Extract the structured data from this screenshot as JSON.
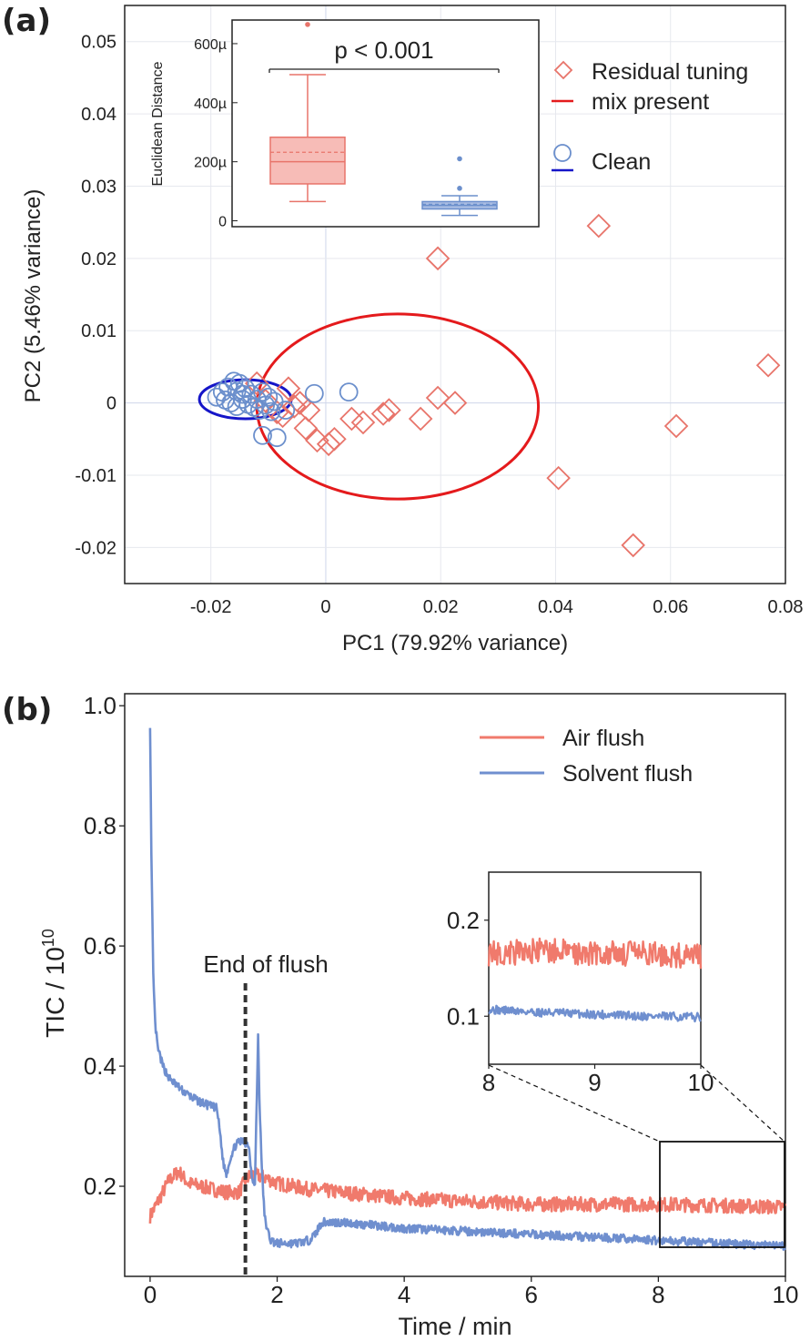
{
  "panel_a": {
    "label": "(a)",
    "xlabel": "PC1  (79.92% variance)",
    "ylabel": "PC2  (5.46% variance)",
    "legend": {
      "residual_line1": "Residual tuning",
      "residual_line2": "mix present",
      "clean": "Clean"
    },
    "inset": {
      "ylabel": "Euclidean Distance",
      "annotation": "p < 0.001"
    }
  },
  "panel_b": {
    "label": "(b)",
    "xlabel": "Time / min",
    "ylabel_prefix": "TIC / 10",
    "ylabel_exp": "10",
    "legend": {
      "air": "Air flush",
      "solvent": "Solvent flush"
    },
    "annotation": "End of flush"
  },
  "colors": {
    "residual": "#e8746a",
    "clean": "#6b8fcc",
    "ellipse_residual": "#e41a1c",
    "ellipse_clean": "#1515c8",
    "air": "#f07a6c",
    "solvent": "#6f8fcf"
  },
  "chart_data": [
    {
      "type": "scatter",
      "xlim": [
        -0.035,
        0.08
      ],
      "ylim": [
        -0.025,
        0.055
      ],
      "x_ticks": [
        "-0.02",
        "0",
        "0.02",
        "0.04",
        "0.06",
        "0.08"
      ],
      "x_tick_values": [
        -0.02,
        0,
        0.02,
        0.04,
        0.06,
        0.08
      ],
      "y_ticks": [
        "-0.02",
        "-0.01",
        "0",
        "0.01",
        "0.02",
        "0.03",
        "0.04",
        "0.05"
      ],
      "y_tick_values": [
        -0.02,
        -0.01,
        0,
        0.01,
        0.02,
        0.03,
        0.04,
        0.05
      ],
      "grid": true,
      "legend_position": "top-right",
      "series": [
        {
          "name": "Residual tuning mix present",
          "marker": "diamond",
          "points": [
            [
              0.0475,
              0.0245
            ],
            [
              0.0195,
              0.02
            ],
            [
              0.077,
              0.0052
            ],
            [
              0.061,
              -0.0032
            ],
            [
              0.0405,
              -0.0104
            ],
            [
              0.0535,
              -0.0197
            ],
            [
              0.0225,
              0.0
            ],
            [
              0.0195,
              0.0007
            ],
            [
              0.0165,
              -0.0022
            ],
            [
              0.011,
              -0.001
            ],
            [
              0.01,
              -0.0015
            ],
            [
              0.0065,
              -0.0027
            ],
            [
              0.0045,
              -0.0022
            ],
            [
              0.0015,
              -0.005
            ],
            [
              0.0005,
              -0.0057
            ],
            [
              -0.0015,
              -0.0052
            ],
            [
              -0.0035,
              -0.0035
            ],
            [
              -0.003,
              -0.001
            ],
            [
              -0.0045,
              0.0
            ],
            [
              -0.0065,
              0.002
            ],
            [
              -0.0085,
              -0.0013
            ],
            [
              -0.0105,
              0.0003
            ],
            [
              -0.012,
              0.0027
            ],
            [
              -0.0075,
              -0.0018
            ],
            [
              -0.0055,
              -0.0005
            ]
          ]
        },
        {
          "name": "Clean",
          "marker": "circle",
          "points": [
            [
              -0.019,
              0.0008
            ],
            [
              -0.018,
              0.0015
            ],
            [
              -0.017,
              0.0022
            ],
            [
              -0.016,
              0.003
            ],
            [
              -0.015,
              0.0027
            ],
            [
              -0.014,
              0.002
            ],
            [
              -0.013,
              0.0012
            ],
            [
              -0.012,
              0.0005
            ],
            [
              -0.011,
              0.0015
            ],
            [
              -0.01,
              0.0008
            ],
            [
              -0.009,
              0.0002
            ],
            [
              -0.0165,
              0.0
            ],
            [
              -0.0155,
              -0.0005
            ],
            [
              -0.0145,
              0.0005
            ],
            [
              -0.0135,
              -0.0002
            ],
            [
              -0.0175,
              0.0004
            ],
            [
              -0.0125,
              -0.0006
            ],
            [
              -0.0115,
              -0.001
            ],
            [
              -0.0105,
              -0.0003
            ],
            [
              -0.0095,
              -0.0012
            ],
            [
              -0.0145,
              0.0012
            ],
            [
              -0.0155,
              0.0016
            ],
            [
              -0.002,
              0.0013
            ],
            [
              0.004,
              0.0015
            ],
            [
              -0.011,
              -0.0045
            ],
            [
              -0.0085,
              -0.0048
            ],
            [
              -0.007,
              -0.001
            ]
          ]
        }
      ],
      "ellipses": [
        {
          "series": "Residual tuning mix present",
          "center": [
            0.0125,
            -0.0005
          ],
          "radii": [
            0.0245,
            0.0128
          ]
        },
        {
          "series": "Clean",
          "center": [
            -0.014,
            0.0005
          ],
          "radii": [
            0.008,
            0.0027
          ]
        }
      ]
    },
    {
      "type": "box",
      "ylabel": "Euclidean Distance",
      "ylim": [
        -20,
        680
      ],
      "y_ticks": [
        "0",
        "200µ",
        "400µ",
        "600µ"
      ],
      "y_tick_values": [
        0,
        200,
        400,
        600
      ],
      "annotation": "p < 0.001",
      "boxes": [
        {
          "group": "Residual tuning mix present",
          "whisker_low": 65,
          "q1": 125,
          "median": 200,
          "mean": 232,
          "q3": 283,
          "whisker_high": 495,
          "outliers": [
            665
          ]
        },
        {
          "group": "Clean",
          "whisker_low": 18,
          "q1": 40,
          "median": 52,
          "mean": 56,
          "q3": 65,
          "whisker_high": 85,
          "outliers": [
            110,
            210
          ]
        }
      ]
    },
    {
      "type": "line",
      "xlabel": "Time / min",
      "ylabel": "TIC / 10^10",
      "xlim": [
        -0.4,
        10
      ],
      "ylim": [
        0.05,
        1.02
      ],
      "x_ticks": [
        "0",
        "2",
        "4",
        "6",
        "8",
        "10"
      ],
      "x_tick_values": [
        0,
        2,
        4,
        6,
        8,
        10
      ],
      "y_ticks": [
        "0.2",
        "0.4",
        "0.6",
        "0.8",
        "1.0"
      ],
      "y_tick_values": [
        0.2,
        0.4,
        0.6,
        0.8,
        1.0
      ],
      "legend_position": "top-right",
      "annotation": {
        "text": "End of flush",
        "x": 1.5
      },
      "series": [
        {
          "name": "Air flush",
          "x": [
            0,
            0.1,
            0.2,
            0.3,
            0.45,
            0.6,
            0.8,
            1.0,
            1.2,
            1.4,
            1.5,
            1.6,
            1.8,
            2.0,
            2.5,
            3,
            4,
            5,
            6,
            7,
            8,
            9,
            10
          ],
          "y": [
            0.15,
            0.17,
            0.19,
            0.21,
            0.225,
            0.205,
            0.2,
            0.195,
            0.19,
            0.19,
            0.21,
            0.22,
            0.215,
            0.205,
            0.195,
            0.19,
            0.18,
            0.175,
            0.17,
            0.17,
            0.17,
            0.168,
            0.165
          ],
          "noise": 0.012
        },
        {
          "name": "Solvent flush",
          "x": [
            0,
            0.02,
            0.05,
            0.08,
            0.12,
            0.2,
            0.3,
            0.5,
            0.7,
            0.9,
            1.05,
            1.1,
            1.15,
            1.2,
            1.27,
            1.35,
            1.45,
            1.55,
            1.6,
            1.65,
            1.7,
            1.72,
            1.75,
            1.8,
            1.85,
            1.9,
            2.0,
            2.3,
            2.5,
            2.6,
            2.7,
            3.0,
            3.5,
            4,
            5,
            6,
            7,
            8,
            9,
            10
          ],
          "y": [
            0.97,
            0.75,
            0.55,
            0.47,
            0.43,
            0.4,
            0.38,
            0.36,
            0.345,
            0.335,
            0.33,
            0.29,
            0.24,
            0.22,
            0.25,
            0.27,
            0.275,
            0.27,
            0.22,
            0.2,
            0.45,
            0.35,
            0.25,
            0.15,
            0.125,
            0.11,
            0.105,
            0.105,
            0.11,
            0.12,
            0.14,
            0.14,
            0.135,
            0.13,
            0.125,
            0.12,
            0.115,
            0.11,
            0.105,
            0.1
          ],
          "noise": 0.007
        }
      ]
    },
    {
      "type": "line",
      "xlim": [
        8,
        10
      ],
      "ylim": [
        0.05,
        0.25
      ],
      "x_ticks": [
        "8",
        "9",
        "10"
      ],
      "x_tick_values": [
        8,
        9,
        10
      ],
      "y_ticks": [
        "0.1",
        "0.2"
      ],
      "y_tick_values": [
        0.1,
        0.2
      ],
      "series": [
        {
          "name": "Air flush",
          "x": [
            8,
            8.5,
            9,
            9.5,
            10
          ],
          "y": [
            0.165,
            0.168,
            0.166,
            0.165,
            0.162
          ],
          "noise": 0.013
        },
        {
          "name": "Solvent flush",
          "x": [
            8,
            8.5,
            9,
            9.5,
            10
          ],
          "y": [
            0.107,
            0.104,
            0.102,
            0.1,
            0.099
          ],
          "noise": 0.0045
        }
      ]
    }
  ]
}
